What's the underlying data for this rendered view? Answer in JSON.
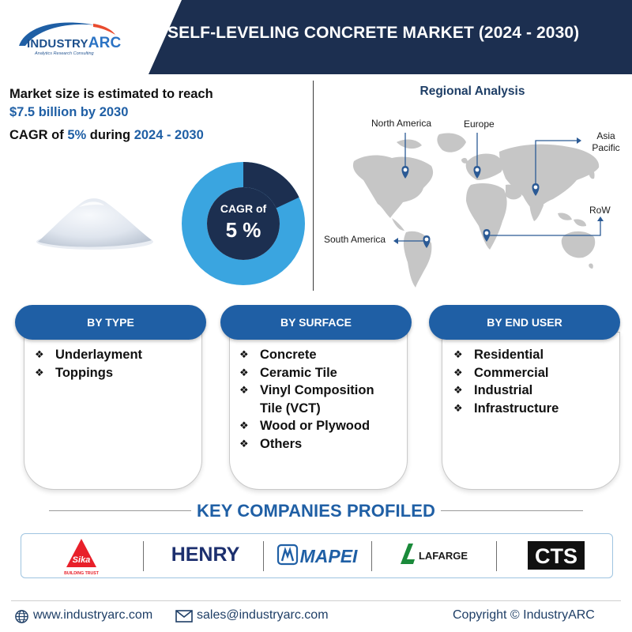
{
  "header": {
    "logo_word_main": "INDUSTRY",
    "logo_word_accent": "ARC",
    "logo_tagline": "Analytics  Research  Consulting",
    "title": "SELF-LEVELING CONCRETE MARKET (2024 - 2030)"
  },
  "market": {
    "line1": "Market size is estimated to reach",
    "line2": "$7.5 billion by 2030",
    "cagr_prefix": "CAGR of ",
    "cagr_value": "5%",
    "cagr_mid": " during ",
    "cagr_period": "2024 - 2030"
  },
  "donut": {
    "label": "CAGR of",
    "value": "5 %",
    "fraction": 0.05
  },
  "regional": {
    "title": "Regional Analysis",
    "regions": [
      {
        "name": "North America"
      },
      {
        "name": "Europe"
      },
      {
        "name": "Asia Pacific"
      },
      {
        "name": "RoW"
      },
      {
        "name": "South America"
      }
    ]
  },
  "segments": [
    {
      "title": "BY TYPE",
      "items": [
        "Underlayment",
        "Toppings"
      ]
    },
    {
      "title": "BY SURFACE",
      "items": [
        "Concrete",
        "Ceramic Tile",
        "Vinyl Composition Tile (VCT)",
        "Wood or Plywood",
        "Others"
      ]
    },
    {
      "title": "BY END USER",
      "items": [
        "Residential",
        "Commercial",
        "Industrial",
        "Infrastructure"
      ]
    }
  ],
  "companies": {
    "title": "KEY COMPANIES PROFILED",
    "logos": [
      {
        "name": "Sika",
        "tagline": "BUILDING TRUST"
      },
      {
        "name": "HENRY"
      },
      {
        "name": "MAPEI"
      },
      {
        "name": "LAFARGE"
      },
      {
        "name": "CTS"
      }
    ]
  },
  "footer": {
    "website": "www.industryarc.com",
    "email": "sales@industryarc.com",
    "copyright": "Copyright © IndustryARC"
  },
  "colors": {
    "navy": "#1c2f50",
    "brand_blue": "#1f5fa5",
    "donut_light": "#3aa5e0",
    "map_gray": "#c6c6c6",
    "pin_blue": "#2b5a95"
  }
}
